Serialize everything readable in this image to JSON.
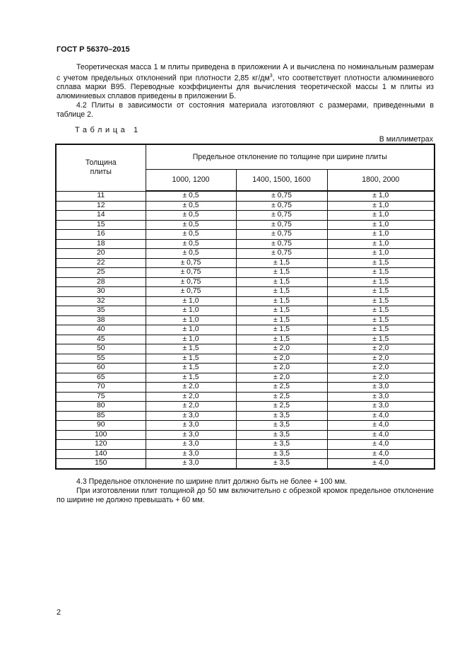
{
  "header": {
    "doc_id": "ГОСТ Р 56370–2015"
  },
  "intro": {
    "para1_a": "Теоретическая масса 1 м плиты приведена в приложении А и вычислена по номинальным размерам с учетом предельных отклонений при плотности 2,85 кг/дм",
    "para1_sup": "3",
    "para1_b": ", что соответствует плотности алюминиевого сплава марки В95. Переводные коэффициенты для вычисления теоретической массы 1 м плиты из алюминиевых сплавов приведены в приложении Б.",
    "para2": "4.2 Плиты в зависимости от состояния материала изготовляют с размерами, приведенными в таблице 2."
  },
  "table": {
    "caption": "Таблица 1",
    "units": "В миллиметрах",
    "col_thickness": "Толщина плиты",
    "col_group": "Предельное отклонение по толщине при ширине плиты",
    "widths": [
      "1000, 1200",
      "1400, 1500, 1600",
      "1800, 2000"
    ],
    "rows": [
      [
        "11",
        "± 0,5",
        "± 0,75",
        "± 1,0"
      ],
      [
        "12",
        "± 0,5",
        "± 0,75",
        "± 1,0"
      ],
      [
        "14",
        "± 0,5",
        "± 0,75",
        "± 1,0"
      ],
      [
        "15",
        "± 0,5",
        "± 0,75",
        "± 1,0"
      ],
      [
        "16",
        "± 0,5",
        "± 0,75",
        "± 1,0"
      ],
      [
        "18",
        "± 0,5",
        "± 0,75",
        "± 1,0"
      ],
      [
        "20",
        "± 0,5",
        "± 0,75",
        "± 1,0"
      ],
      [
        "22",
        "± 0,75",
        "± 1,5",
        "± 1,5"
      ],
      [
        "25",
        "± 0,75",
        "± 1,5",
        "± 1,5"
      ],
      [
        "28",
        "± 0,75",
        "± 1,5",
        "± 1,5"
      ],
      [
        "30",
        "± 0,75",
        "± 1,5",
        "± 1,5"
      ],
      [
        "32",
        "± 1,0",
        "± 1,5",
        "± 1,5"
      ],
      [
        "35",
        "± 1,0",
        "± 1,5",
        "± 1,5"
      ],
      [
        "38",
        "± 1,0",
        "± 1,5",
        "± 1,5"
      ],
      [
        "40",
        "± 1,0",
        "± 1,5",
        "± 1,5"
      ],
      [
        "45",
        "± 1,0",
        "± 1,5",
        "± 1,5"
      ],
      [
        "50",
        "± 1,5",
        "± 2,0",
        "± 2,0"
      ],
      [
        "55",
        "± 1,5",
        "± 2,0",
        "± 2,0"
      ],
      [
        "60",
        "± 1,5",
        "± 2,0",
        "± 2,0"
      ],
      [
        "65",
        "± 1,5",
        "± 2,0",
        "± 2,0"
      ],
      [
        "70",
        "± 2,0",
        "± 2,5",
        "± 3,0"
      ],
      [
        "75",
        "± 2,0",
        "± 2,5",
        "± 3,0"
      ],
      [
        "80",
        "± 2,0",
        "± 2,5",
        "± 3,0"
      ],
      [
        "85",
        "± 3,0",
        "± 3,5",
        "± 4,0"
      ],
      [
        "90",
        "± 3,0",
        "± 3,5",
        "± 4,0"
      ],
      [
        "100",
        "± 3,0",
        "± 3,5",
        "± 4,0"
      ],
      [
        "120",
        "± 3,0",
        "± 3,5",
        "± 4,0"
      ],
      [
        "140",
        "± 3,0",
        "± 3,5",
        "± 4,0"
      ],
      [
        "150",
        "± 3,0",
        "± 3,5",
        "± 4,0"
      ]
    ]
  },
  "after": {
    "para3": "4.3 Предельное отклонение по ширине плит должно быть не более + 100 мм.",
    "para4": "При изготовлении плит толщиной до 50 мм включительно с обрезкой кромок предельное отклонение по ширине не должно превышать + 60 мм."
  },
  "footer": {
    "page_number": "2"
  }
}
